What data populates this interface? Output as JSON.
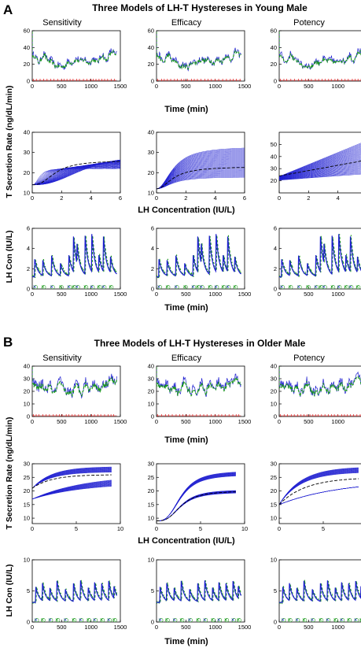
{
  "panels": [
    {
      "letter": "A",
      "title": "Three Models of LH-T Hystereses in Young Male",
      "columns": [
        "Sensitivity",
        "Efficacy",
        "Potency"
      ],
      "row_ylabels": [
        "T Secretion Rate (ng/dL/min)",
        "LH Con (IU/L)"
      ],
      "row_xlabels": [
        "Time (min)",
        "LH Concentration (IU/L)",
        "Time (min)"
      ]
    },
    {
      "letter": "B",
      "title": "Three Models of LH-T Hystereses in Older Male",
      "columns": [
        "Sensitivity",
        "Efficacy",
        "Potency"
      ],
      "row_ylabels": [
        "T Secretion Rate (ng/dL/min)",
        "LH Con (IU/L)"
      ],
      "row_xlabels": [
        "Time (min)",
        "LH Concentration (IU/L)",
        "Time (min)"
      ]
    }
  ],
  "colors": {
    "blue": "#1f1fd0",
    "green": "#1a9a1a",
    "red": "#dd2222",
    "axis": "#000000"
  },
  "chart_data": [
    {
      "type": "line",
      "panel": "A",
      "row": "time-T",
      "x_ticks": [
        "0",
        "500",
        "1000",
        "1500"
      ],
      "xlim": [
        0,
        1500
      ],
      "y_ticks": [
        "0",
        "20",
        "40",
        "60"
      ],
      "ylim": [
        0,
        60
      ],
      "series_style": [
        {
          "color": "blue",
          "style": "solid"
        },
        {
          "color": "green",
          "style": "dashed"
        }
      ],
      "profile": [
        [
          0,
          30
        ],
        [
          60,
          28
        ],
        [
          130,
          24
        ],
        [
          210,
          32
        ],
        [
          300,
          24
        ],
        [
          400,
          20
        ],
        [
          480,
          17
        ],
        [
          540,
          19
        ],
        [
          620,
          22
        ],
        [
          700,
          25
        ],
        [
          760,
          24
        ],
        [
          840,
          27
        ],
        [
          920,
          23
        ],
        [
          1000,
          25
        ],
        [
          1080,
          24
        ],
        [
          1140,
          27
        ],
        [
          1200,
          30
        ],
        [
          1260,
          26
        ],
        [
          1320,
          32
        ],
        [
          1380,
          36
        ],
        [
          1420,
          33
        ]
      ],
      "pulse_marks": "red ticks along x axis"
    },
    {
      "type": "line",
      "panel": "A",
      "row": "LH-T",
      "x_ticks": [
        "0",
        "2",
        "4",
        "6"
      ],
      "xlim": [
        0,
        6
      ],
      "y_ticks_by_column": [
        [
          "10",
          "20",
          "30",
          "40"
        ],
        [
          "10",
          "20",
          "30",
          "40"
        ],
        [
          "20",
          "30",
          "40",
          "50"
        ]
      ],
      "ylim_by_column": [
        [
          10,
          40
        ],
        [
          10,
          40
        ],
        [
          10,
          60
        ]
      ],
      "models": [
        "Sensitivity",
        "Efficacy",
        "Potency"
      ]
    },
    {
      "type": "line",
      "panel": "A",
      "row": "time-LH",
      "x_ticks": [
        "0",
        "500",
        "1000",
        "1500"
      ],
      "xlim": [
        0,
        1500
      ],
      "y_ticks": [
        "0",
        "2",
        "4",
        "6"
      ],
      "ylim": [
        0,
        6
      ],
      "pulse_times": [
        40,
        180,
        330,
        480,
        620,
        700,
        760,
        900,
        1010,
        1130,
        1210,
        1330
      ]
    },
    {
      "type": "line",
      "panel": "B",
      "row": "time-T",
      "x_ticks": [
        "0",
        "500",
        "1000",
        "1500"
      ],
      "xlim": [
        0,
        1500
      ],
      "y_ticks": [
        "0",
        "10",
        "20",
        "30",
        "40"
      ],
      "ylim": [
        0,
        40
      ],
      "profile": [
        [
          0,
          25
        ],
        [
          60,
          24
        ],
        [
          120,
          26
        ],
        [
          200,
          22
        ],
        [
          280,
          25
        ],
        [
          360,
          19
        ],
        [
          440,
          26
        ],
        [
          520,
          25
        ],
        [
          600,
          18
        ],
        [
          680,
          21
        ],
        [
          760,
          25
        ],
        [
          840,
          21
        ],
        [
          920,
          26
        ],
        [
          1000,
          23
        ],
        [
          1080,
          26
        ],
        [
          1160,
          22
        ],
        [
          1240,
          27
        ],
        [
          1320,
          30
        ],
        [
          1400,
          29
        ]
      ]
    },
    {
      "type": "line",
      "panel": "B",
      "row": "LH-T",
      "x_ticks": [
        "0",
        "5",
        "10"
      ],
      "xlim": [
        0,
        10
      ],
      "y_ticks": [
        "10",
        "15",
        "20",
        "25",
        "30"
      ],
      "ylim": [
        8,
        30
      ],
      "models": [
        "Sensitivity",
        "Efficacy",
        "Potency"
      ]
    },
    {
      "type": "line",
      "panel": "B",
      "row": "time-LH",
      "x_ticks": [
        "0",
        "500",
        "1000",
        "1500"
      ],
      "xlim": [
        0,
        1500
      ],
      "y_ticks": [
        "0",
        "5",
        "10"
      ],
      "ylim": [
        0,
        10
      ],
      "pulse_times": [
        60,
        170,
        300,
        420,
        560,
        700,
        820,
        950,
        1060,
        1180,
        1300,
        1390
      ]
    }
  ]
}
